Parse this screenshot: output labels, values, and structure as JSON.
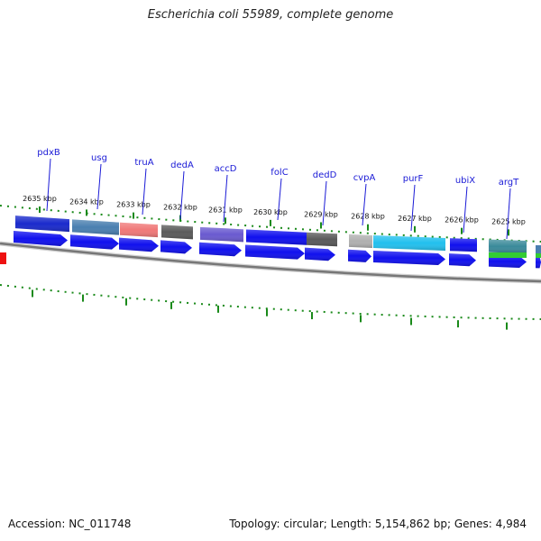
{
  "title": "Escherichia coli 55989, complete genome",
  "footer": {
    "accession": "Accession: NC_011748",
    "summary": "Topology: circular; Length: 5,154,862 bp; Genes: 4,984"
  },
  "colors": {
    "gene_label": "#1a1ad6",
    "tick": "#1a8a1a",
    "backbone": "#777777",
    "cds_forward": "#1010ee"
  },
  "ruler_ticks": [
    {
      "label": "2635 kbp"
    },
    {
      "label": "2634 kbp"
    },
    {
      "label": "2633 kbp"
    },
    {
      "label": "2632 kbp"
    },
    {
      "label": "2631 kbp"
    },
    {
      "label": "2630 kbp"
    },
    {
      "label": "2629 kbp"
    },
    {
      "label": "2628 kbp"
    },
    {
      "label": "2627 kbp"
    },
    {
      "label": "2626 kbp"
    },
    {
      "label": "2625 kbp"
    }
  ],
  "gene_labels": [
    "pdxB",
    "usg",
    "truA",
    "dedA",
    "accD",
    "folC",
    "dedD",
    "cvpA",
    "purF",
    "ubiX",
    "argT"
  ],
  "outer_features": [
    {
      "color": "#1a2acc"
    },
    {
      "color": "#4a7fb0"
    },
    {
      "color": "#f07878"
    },
    {
      "color": "#5a5a5a"
    },
    {
      "color": "#6a5ad0"
    },
    {
      "color": "#1010ee"
    },
    {
      "color": "#5a5a5a"
    },
    {
      "color": "#b0b0b0"
    },
    {
      "color": "#22c0ee"
    },
    {
      "color": "#1010ee"
    },
    {
      "color": "#3a8a9a"
    }
  ]
}
